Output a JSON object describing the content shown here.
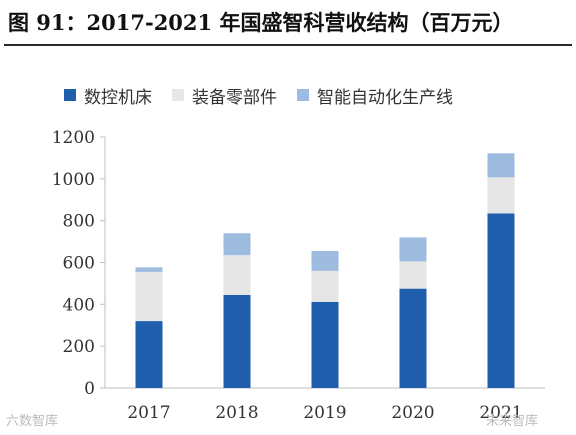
{
  "title": "图 91：2017-2021 年国盛智科营收结构（百万元）",
  "colors": {
    "s1": "#1f5fae",
    "s2": "#e6e6e6",
    "s3": "#9dbbdf",
    "axis": "#bfbfbf",
    "text": "#333333"
  },
  "chart_data": {
    "type": "bar",
    "stacked": true,
    "categories": [
      "2017",
      "2018",
      "2019",
      "2020",
      "2021"
    ],
    "series": [
      {
        "name": "数控机床",
        "values": [
          320,
          445,
          412,
          475,
          835
        ]
      },
      {
        "name": "装备零部件",
        "values": [
          235,
          190,
          148,
          130,
          172
        ]
      },
      {
        "name": "智能自动化生产线",
        "values": [
          22,
          105,
          95,
          115,
          115
        ]
      }
    ],
    "ylim": [
      0,
      1200
    ],
    "yticks": [
      "0",
      "200",
      "400",
      "600",
      "800",
      "1000",
      "1200"
    ],
    "grid": false,
    "legend": "top"
  },
  "watermarks": [
    "未来智库",
    "六数智库"
  ]
}
